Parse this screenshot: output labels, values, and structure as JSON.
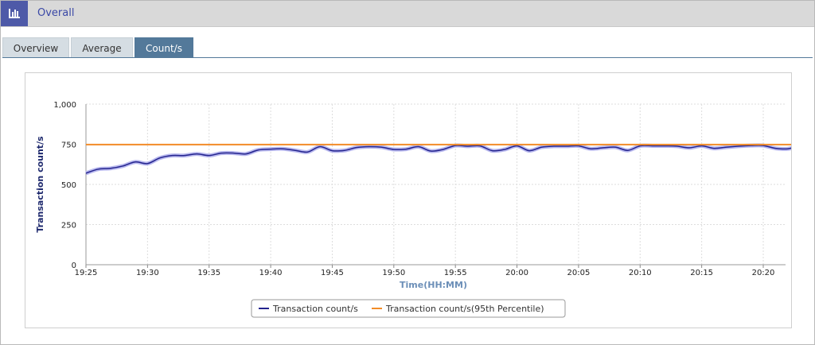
{
  "header": {
    "title": "Overall",
    "icon": "bar-chart-icon"
  },
  "tabs": [
    {
      "label": "Overview",
      "active": false
    },
    {
      "label": "Average",
      "active": false
    },
    {
      "label": "Count/s",
      "active": true
    }
  ],
  "colors": {
    "series": "#23238e",
    "series_halo": "#b8b8ee",
    "percentile": "#f28c28",
    "header_icon": "#4e5aa8",
    "tab_active": "#53799a"
  },
  "chart_data": {
    "type": "line",
    "title": "",
    "xlabel": "Time(HH:MM)",
    "ylabel": "Transaction count/s",
    "ylim": [
      0,
      1000
    ],
    "yticks": [
      0,
      250,
      500,
      750,
      1000
    ],
    "ytick_labels": [
      "0",
      "250",
      "500",
      "750",
      "1,000"
    ],
    "xticks": [
      "19:25",
      "19:30",
      "19:35",
      "19:40",
      "19:45",
      "19:50",
      "19:55",
      "20:00",
      "20:05",
      "20:10",
      "20:15",
      "20:20"
    ],
    "x_start": "19:25",
    "x_end": "20:23",
    "grid": true,
    "legend_position": "bottom",
    "series": [
      {
        "name": "Transaction count/s",
        "x": [
          "19:25",
          "19:26",
          "19:27",
          "19:28",
          "19:29",
          "19:30",
          "19:31",
          "19:32",
          "19:33",
          "19:34",
          "19:35",
          "19:36",
          "19:37",
          "19:38",
          "19:39",
          "19:40",
          "19:41",
          "19:42",
          "19:43",
          "19:44",
          "19:45",
          "19:46",
          "19:47",
          "19:48",
          "19:49",
          "19:50",
          "19:51",
          "19:52",
          "19:53",
          "19:54",
          "19:55",
          "19:56",
          "19:57",
          "19:58",
          "19:59",
          "20:00",
          "20:01",
          "20:02",
          "20:03",
          "20:04",
          "20:05",
          "20:06",
          "20:07",
          "20:08",
          "20:09",
          "20:10",
          "20:11",
          "20:12",
          "20:13",
          "20:14",
          "20:15",
          "20:16",
          "20:17",
          "20:18",
          "20:19",
          "20:20",
          "20:21",
          "20:22",
          "20:23"
        ],
        "values": [
          570,
          595,
          600,
          615,
          640,
          630,
          665,
          680,
          680,
          690,
          680,
          695,
          695,
          690,
          715,
          720,
          722,
          712,
          702,
          735,
          710,
          712,
          730,
          735,
          732,
          718,
          720,
          735,
          708,
          718,
          742,
          738,
          740,
          710,
          718,
          740,
          710,
          732,
          738,
          738,
          740,
          722,
          728,
          732,
          712,
          740,
          740,
          740,
          738,
          728,
          740,
          725,
          732,
          738,
          742,
          742,
          725,
          722,
          742
        ]
      },
      {
        "name": "Transaction count/s(95th Percentile)",
        "x": [
          "19:25",
          "20:23"
        ],
        "values": [
          748,
          748
        ]
      }
    ]
  }
}
